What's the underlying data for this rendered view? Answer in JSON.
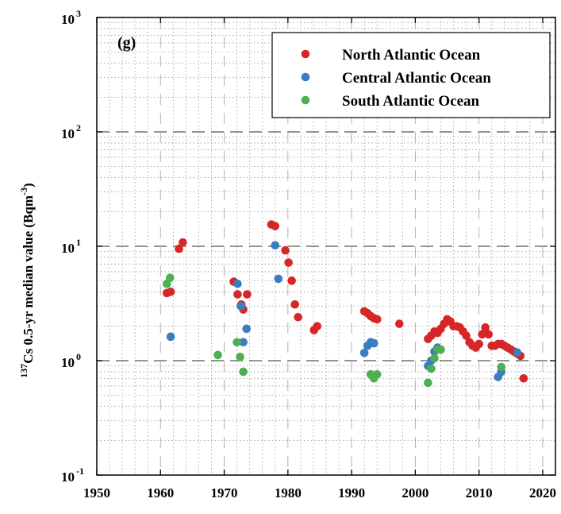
{
  "chart_data": {
    "type": "scatter",
    "panel_label": "(g)",
    "ylabel_prefix": "137",
    "ylabel_main": "Cs 0.5-yr median value (Bqm",
    "ylabel_unit_exp": "-3",
    "ylabel_close": ")",
    "xlim": [
      1950,
      2022
    ],
    "ylim": [
      0.1,
      1000
    ],
    "yscale": "log",
    "x_ticks": [
      "1950",
      "1960",
      "1970",
      "1980",
      "1990",
      "2000",
      "2010",
      "2020"
    ],
    "y_ticks": [
      {
        "value": 0.1,
        "base": "10",
        "exp": "-1"
      },
      {
        "value": 1,
        "base": "10",
        "exp": "0"
      },
      {
        "value": 10,
        "base": "10",
        "exp": "1"
      },
      {
        "value": 100,
        "base": "10",
        "exp": "2"
      },
      {
        "value": 1000,
        "base": "10",
        "exp": "3"
      }
    ],
    "grid": true,
    "legend_position": "top-right",
    "series": [
      {
        "name": "North Atlantic Ocean",
        "color": "#d62728",
        "points": [
          [
            1961.0,
            3.9
          ],
          [
            1961.6,
            4.0
          ],
          [
            1962.9,
            9.5
          ],
          [
            1963.5,
            10.8
          ],
          [
            1971.5,
            4.9
          ],
          [
            1972.1,
            3.8
          ],
          [
            1972.7,
            3.1
          ],
          [
            1973.0,
            2.8
          ],
          [
            1973.6,
            3.8
          ],
          [
            1977.4,
            15.5
          ],
          [
            1978.0,
            15.0
          ],
          [
            1979.6,
            9.2
          ],
          [
            1980.1,
            7.2
          ],
          [
            1980.6,
            5.0
          ],
          [
            1981.1,
            3.1
          ],
          [
            1981.6,
            2.4
          ],
          [
            1984.1,
            1.85
          ],
          [
            1984.6,
            2.0
          ],
          [
            1992.0,
            2.7
          ],
          [
            1992.5,
            2.6
          ],
          [
            1993.0,
            2.45
          ],
          [
            1993.5,
            2.35
          ],
          [
            1994.0,
            2.3
          ],
          [
            1997.5,
            2.1
          ],
          [
            2002.0,
            1.55
          ],
          [
            2002.5,
            1.65
          ],
          [
            2003.0,
            1.8
          ],
          [
            2003.5,
            1.75
          ],
          [
            2004.0,
            1.9
          ],
          [
            2004.5,
            2.1
          ],
          [
            2005.0,
            2.3
          ],
          [
            2005.5,
            2.2
          ],
          [
            2006.0,
            2.0
          ],
          [
            2006.5,
            2.0
          ],
          [
            2007.0,
            1.95
          ],
          [
            2007.5,
            1.8
          ],
          [
            2008.0,
            1.65
          ],
          [
            2008.5,
            1.45
          ],
          [
            2009.0,
            1.35
          ],
          [
            2009.5,
            1.3
          ],
          [
            2010.0,
            1.4
          ],
          [
            2010.5,
            1.7
          ],
          [
            2011.0,
            1.95
          ],
          [
            2011.5,
            1.7
          ],
          [
            2012.0,
            1.35
          ],
          [
            2012.5,
            1.35
          ],
          [
            2013.0,
            1.4
          ],
          [
            2013.5,
            1.4
          ],
          [
            2014.0,
            1.35
          ],
          [
            2014.5,
            1.3
          ],
          [
            2015.0,
            1.25
          ],
          [
            2015.5,
            1.2
          ],
          [
            2016.0,
            1.15
          ],
          [
            2016.5,
            1.1
          ],
          [
            2017.0,
            0.7
          ]
        ]
      },
      {
        "name": "Central Atlantic Ocean",
        "color": "#3a7dc0",
        "points": [
          [
            1961.6,
            1.62
          ],
          [
            1972.1,
            4.7
          ],
          [
            1972.6,
            3.0
          ],
          [
            1973.0,
            1.45
          ],
          [
            1973.5,
            1.9
          ],
          [
            1978.0,
            10.2
          ],
          [
            1978.5,
            5.2
          ],
          [
            1992.0,
            1.17
          ],
          [
            1992.5,
            1.35
          ],
          [
            1993.0,
            1.45
          ],
          [
            1993.5,
            1.42
          ],
          [
            2002.0,
            0.9
          ],
          [
            2002.5,
            1.0
          ],
          [
            2003.0,
            1.2
          ],
          [
            2003.5,
            1.3
          ],
          [
            2013.0,
            0.72
          ],
          [
            2013.5,
            0.8
          ],
          [
            2016.0,
            1.18
          ]
        ]
      },
      {
        "name": "South Atlantic Ocean",
        "color": "#4caf50",
        "points": [
          [
            1961.0,
            4.7
          ],
          [
            1961.5,
            5.3
          ],
          [
            1969.0,
            1.12
          ],
          [
            1972.0,
            1.45
          ],
          [
            1972.5,
            1.08
          ],
          [
            1973.0,
            0.8
          ],
          [
            1993.0,
            0.76
          ],
          [
            1993.5,
            0.7
          ],
          [
            1994.0,
            0.76
          ],
          [
            2002.0,
            0.64
          ],
          [
            2002.5,
            0.85
          ],
          [
            2003.0,
            1.05
          ],
          [
            2003.5,
            1.25
          ],
          [
            2004.0,
            1.25
          ],
          [
            2013.5,
            0.88
          ]
        ]
      }
    ]
  }
}
